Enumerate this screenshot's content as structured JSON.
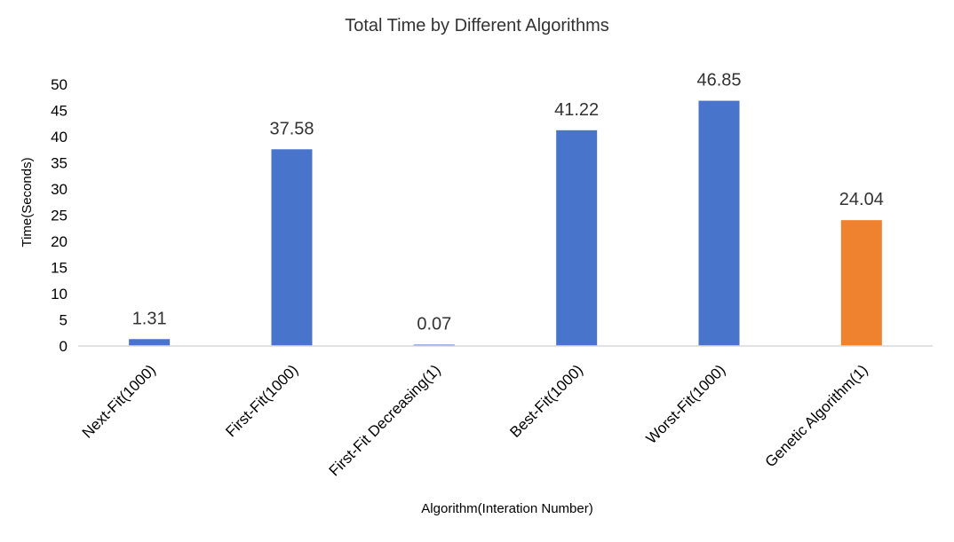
{
  "chart_data": {
    "type": "bar",
    "title": "Total Time by Different Algorithms",
    "xlabel": "Algorithm(Interation Number)",
    "ylabel": "Time(Seconds)",
    "categories": [
      "Next-Fit(1000)",
      "First-Fit(1000)",
      "First-Fit Decreasing(1)",
      "Best-Fit(1000)",
      "Worst-Fit(1000)",
      "Genetic Algorithm(1)"
    ],
    "values": [
      1.31,
      37.58,
      0.07,
      41.22,
      46.85,
      24.04
    ],
    "data_labels": [
      "1.31",
      "37.58",
      "0.07",
      "41.22",
      "46.85",
      "24.04"
    ],
    "bar_colors": [
      "#4874CB",
      "#4874CB",
      "#4874CB",
      "#4874CB",
      "#4874CB",
      "#EE822F"
    ],
    "ylim": [
      0,
      50
    ],
    "yticks": [
      0,
      5,
      10,
      15,
      20,
      25,
      30,
      35,
      40,
      45,
      50
    ],
    "grid": false,
    "legend": "none"
  },
  "colors": {
    "bar_default": "#4874CB",
    "bar_highlight": "#EE822F",
    "text": "#333333",
    "axis": "#D9D9D9"
  }
}
